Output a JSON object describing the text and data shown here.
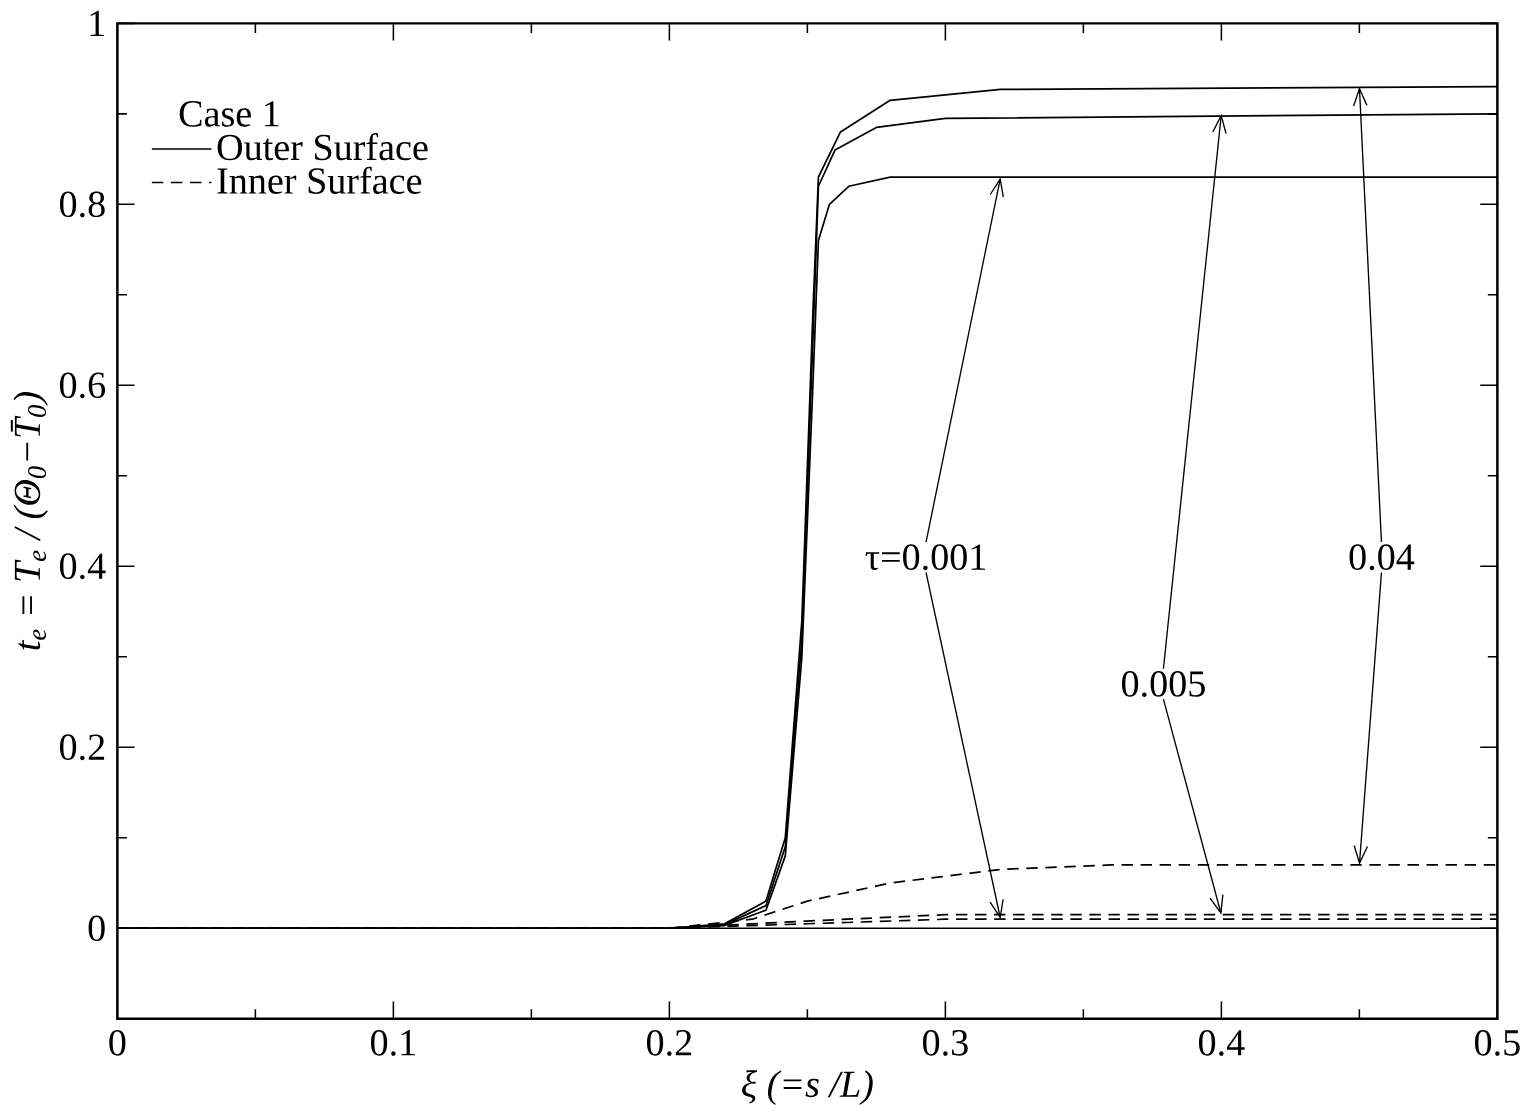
{
  "chart_data": {
    "type": "line",
    "xlabel": "ξ (=s /L)",
    "ylabel": "t$_{e}$ = T$_{e}$ / (Θ$_{0}$−T̄$_{0}$)",
    "legend_title": "Case 1",
    "legend": "top left",
    "xlim": [
      0,
      0.5
    ],
    "ylim": [
      -0.1,
      1
    ],
    "xticks": [
      0,
      0.1,
      0.2,
      0.3,
      0.4,
      0.5
    ],
    "yticks": [
      0,
      0.2,
      0.4,
      0.6,
      0.8,
      1
    ],
    "grid": false,
    "series": [
      {
        "name": "Outer Surface",
        "color": "#000000",
        "line_style": "solid",
        "x": [
          0,
          0.2,
          0.22,
          0.235,
          0.242,
          0.248,
          0.252,
          0.254,
          0.258,
          0.265,
          0.28,
          0.5
        ],
        "values": [
          0,
          0,
          0.003,
          0.02,
          0.08,
          0.3,
          0.6,
          0.76,
          0.8,
          0.82,
          0.83,
          0.83
        ]
      },
      {
        "color": "#000000",
        "line_style": "solid",
        "x": [
          0,
          0.2,
          0.22,
          0.235,
          0.242,
          0.248,
          0.252,
          0.254,
          0.26,
          0.275,
          0.3,
          0.5
        ],
        "values": [
          0,
          0,
          0.004,
          0.025,
          0.09,
          0.32,
          0.65,
          0.82,
          0.86,
          0.885,
          0.895,
          0.9
        ]
      },
      {
        "color": "#000000",
        "line_style": "solid",
        "x": [
          0,
          0.2,
          0.22,
          0.235,
          0.242,
          0.248,
          0.252,
          0.254,
          0.262,
          0.28,
          0.32,
          0.5
        ],
        "values": [
          0,
          0,
          0.005,
          0.03,
          0.1,
          0.34,
          0.68,
          0.83,
          0.88,
          0.915,
          0.927,
          0.93
        ]
      },
      {
        "name": "Inner Surface",
        "color": "#000000",
        "line_style": "dashed",
        "x": [
          0,
          0.2,
          0.25,
          0.3,
          0.5
        ],
        "values": [
          0,
          0,
          0.005,
          0.01,
          0.01
        ]
      },
      {
        "color": "#000000",
        "line_style": "dashed",
        "x": [
          0,
          0.2,
          0.25,
          0.3,
          0.5
        ],
        "values": [
          0,
          0,
          0.008,
          0.015,
          0.015
        ]
      },
      {
        "color": "#000000",
        "line_style": "dashed",
        "x": [
          0,
          0.2,
          0.23,
          0.25,
          0.28,
          0.32,
          0.36,
          0.5
        ],
        "values": [
          0,
          0,
          0.01,
          0.03,
          0.05,
          0.065,
          0.07,
          0.07
        ]
      }
    ],
    "ref_lines": [
      {
        "axis": "y",
        "value": 0,
        "color": "#000000",
        "line_style": "solid"
      }
    ],
    "annotations": [
      {
        "text": "τ=0.001",
        "x": 0.32,
        "y": 0.83
      },
      {
        "text": "0.005",
        "x": 0.4,
        "y": 0.9
      },
      {
        "text": "0.04",
        "x": 0.45,
        "y": 0.93
      }
    ]
  }
}
